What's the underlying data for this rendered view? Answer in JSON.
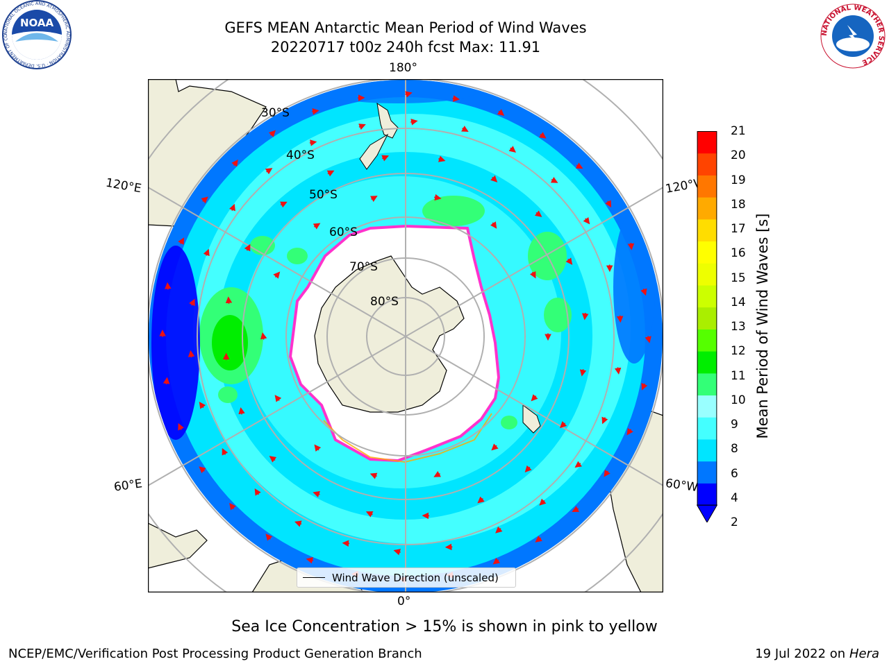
{
  "header": {
    "title_line1": "GEFS MEAN Antarctic Mean Period of Wind Waves",
    "title_line2": "20220717 t00z 240h fcst   Max: 11.91"
  },
  "logos": {
    "noara_text": "NOAA",
    "noaa_ring": "NATIONAL OCEANIC AND ATMOSPHERIC ADMINISTRATION · U.S. DEPARTMENT OF COMMERCE",
    "nws_ring": "NATIONAL WEATHER SERVICE"
  },
  "map": {
    "longitude_labels": {
      "top": "180°",
      "bottom": "0°",
      "left_upper": "120°E",
      "left_lower": "60°E",
      "right_upper": "120°W",
      "right_lower": "60°W"
    },
    "latitude_labels": [
      "30°S",
      "40°S",
      "50°S",
      "60°S",
      "70°S",
      "80°S"
    ],
    "legend_label": "Wind Wave Direction (unscaled)",
    "colors": {
      "land": "#efeedb",
      "ice_edge": "#ff33cc",
      "ice_fill": "#ffffff",
      "grid": "#b0b0b0"
    }
  },
  "colorbar": {
    "label": "Mean Period of Wind Waves [s]",
    "ticks": [
      "21",
      "20",
      "19",
      "18",
      "17",
      "16",
      "15",
      "14",
      "13",
      "12",
      "11",
      "10",
      "9",
      "8",
      "6",
      "4",
      "2"
    ],
    "colors": [
      "#0000ff",
      "#0077ff",
      "#00e5ff",
      "#44ffff",
      "#99ffff",
      "#33ff77",
      "#00ee00",
      "#55ff00",
      "#aaee00",
      "#ccff00",
      "#eeff00",
      "#ffff00",
      "#ffdd00",
      "#ffaa00",
      "#ff7700",
      "#ff4400",
      "#ff0000"
    ]
  },
  "note": "Sea Ice Concentration > 15% is shown in pink to yellow",
  "footer": {
    "left": "NCEP/EMC/Verification Post Processing Product Generation Branch",
    "date": "19 Jul 2022 on ",
    "machine": "Hera"
  }
}
